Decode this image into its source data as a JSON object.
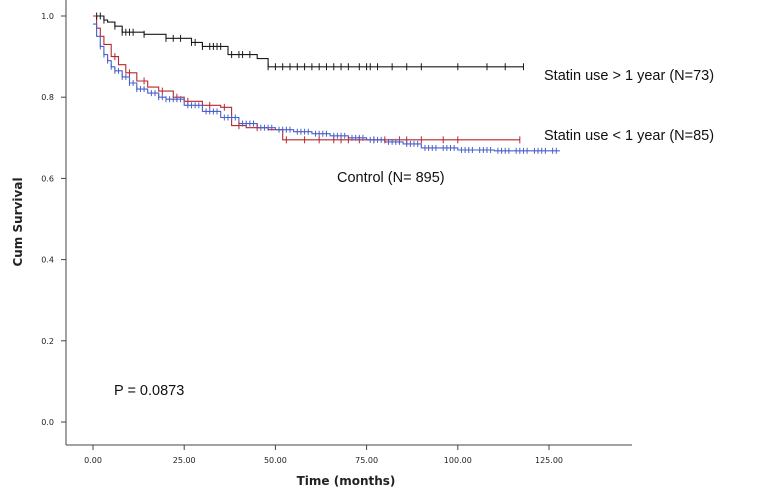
{
  "chart_data": {
    "type": "line",
    "title": "",
    "xlabel": "Time (months)",
    "ylabel": "Cum Survival",
    "xlim": [
      0,
      150
    ],
    "ylim": [
      0,
      1.0
    ],
    "x_ticks": [
      0,
      25,
      50,
      75,
      100,
      125
    ],
    "x_tick_labels": [
      "0.00",
      "25.00",
      "50.00",
      "75.00",
      "100.00",
      "125.00"
    ],
    "y_ticks": [
      0,
      0.2,
      0.4,
      0.6,
      0.8,
      1.0
    ],
    "y_tick_labels": [
      "0.0",
      "0.2",
      "0.4",
      "0.6",
      "0.8",
      "1.0"
    ],
    "grid": false,
    "annotations": {
      "p_value": "P = 0.0873"
    },
    "series": [
      {
        "name": "Statin use > 1 year (N=73)",
        "color": "#1a1a1a",
        "x": [
          0,
          1,
          2,
          3,
          4,
          6,
          8,
          10,
          12,
          14,
          18,
          20,
          25,
          27,
          30,
          35,
          37,
          40,
          45,
          48,
          52,
          60,
          75,
          100,
          118
        ],
        "y": [
          1.0,
          1.0,
          1.0,
          0.99,
          0.985,
          0.975,
          0.96,
          0.96,
          0.96,
          0.955,
          0.955,
          0.945,
          0.945,
          0.935,
          0.925,
          0.925,
          0.905,
          0.905,
          0.895,
          0.875,
          0.875,
          0.875,
          0.875,
          0.875,
          0.875
        ],
        "censored_x": [
          1,
          2,
          3,
          6,
          8,
          9,
          10,
          11,
          14,
          20,
          22,
          24,
          27,
          28,
          30,
          32,
          33,
          34,
          35,
          38,
          40,
          41,
          43,
          48,
          50,
          52,
          54,
          56,
          58,
          60,
          62,
          64,
          66,
          68,
          70,
          73,
          75,
          76,
          78,
          82,
          86,
          90,
          100,
          108,
          113,
          118
        ]
      },
      {
        "name": "Statin use < 1 year (N=85)",
        "color": "#b5282e",
        "x": [
          0,
          1,
          2,
          3,
          5,
          7,
          9,
          12,
          15,
          18,
          22,
          25,
          30,
          35,
          38,
          42,
          48,
          50,
          52,
          55,
          60,
          70,
          80,
          100,
          117
        ],
        "y": [
          1.0,
          0.97,
          0.95,
          0.93,
          0.9,
          0.88,
          0.86,
          0.84,
          0.825,
          0.815,
          0.8,
          0.79,
          0.78,
          0.775,
          0.73,
          0.725,
          0.72,
          0.72,
          0.695,
          0.695,
          0.695,
          0.695,
          0.695,
          0.695,
          0.695
        ],
        "censored_x": [
          6,
          10,
          14,
          19,
          23,
          26,
          32,
          36,
          40,
          45,
          53,
          58,
          62,
          66,
          68,
          70,
          73,
          77,
          80,
          84,
          86,
          90,
          96,
          100,
          117
        ]
      },
      {
        "name": "Control (N= 895)",
        "color": "#4a5fc9",
        "x": [
          0,
          1,
          2,
          3,
          4,
          5,
          6,
          8,
          10,
          12,
          15,
          18,
          20,
          25,
          30,
          35,
          40,
          45,
          50,
          55,
          60,
          65,
          70,
          75,
          80,
          85,
          90,
          100,
          110,
          120,
          128
        ],
        "y": [
          0.98,
          0.95,
          0.925,
          0.905,
          0.89,
          0.875,
          0.865,
          0.85,
          0.835,
          0.82,
          0.81,
          0.8,
          0.795,
          0.78,
          0.765,
          0.75,
          0.735,
          0.725,
          0.72,
          0.715,
          0.71,
          0.705,
          0.7,
          0.695,
          0.69,
          0.685,
          0.675,
          0.67,
          0.668,
          0.668,
          0.668
        ],
        "censored_x": [
          2,
          3,
          4,
          5,
          6,
          7,
          8,
          9,
          10,
          11,
          12,
          13,
          14,
          16,
          17,
          18,
          19,
          20,
          21,
          22,
          23,
          24,
          26,
          27,
          28,
          29,
          31,
          32,
          33,
          34,
          36,
          37,
          38,
          39,
          41,
          42,
          43,
          44,
          46,
          47,
          48,
          49,
          51,
          52,
          53,
          54,
          56,
          57,
          58,
          59,
          61,
          62,
          63,
          64,
          66,
          67,
          68,
          69,
          71,
          72,
          73,
          74,
          76,
          77,
          78,
          79,
          81,
          82,
          83,
          84,
          86,
          87,
          88,
          89,
          91,
          92,
          93,
          94,
          96,
          97,
          98,
          99,
          101,
          102,
          103,
          104,
          106,
          107,
          108,
          109,
          111,
          112,
          113,
          114,
          116,
          117,
          118,
          119,
          121,
          122,
          123,
          124,
          126,
          127
        ]
      }
    ]
  }
}
